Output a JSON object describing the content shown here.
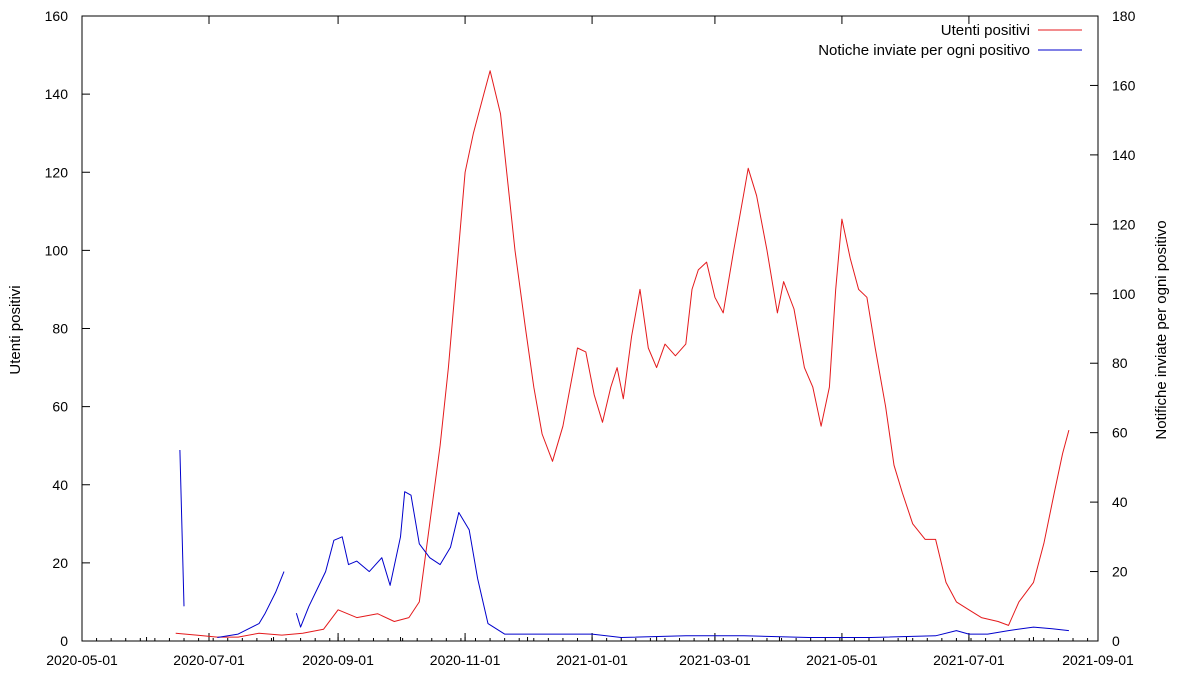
{
  "chart_data": {
    "type": "line",
    "title": "",
    "xlabel": "",
    "ylabel": "Utenti positivi",
    "y2label": "Notifiche inviate per ogni positivo",
    "xlim": [
      "2020-05-01",
      "2021-09-01"
    ],
    "ylim": [
      0,
      160
    ],
    "y2lim": [
      0,
      180
    ],
    "x_ticks": [
      "2020-05-01",
      "2020-07-01",
      "2020-09-01",
      "2020-11-01",
      "2021-01-01",
      "2021-03-01",
      "2021-05-01",
      "2021-07-01",
      "2021-09-01"
    ],
    "y_ticks": [
      "0",
      "20",
      "40",
      "60",
      "80",
      "100",
      "120",
      "140",
      "160"
    ],
    "y2_ticks": [
      "0",
      "20",
      "40",
      "60",
      "80",
      "100",
      "120",
      "140",
      "160",
      "180"
    ],
    "grid": false,
    "legend_position": "top-right",
    "series": [
      {
        "name": "Utenti positivi",
        "axis": "left",
        "color": "#e41a1c",
        "points": [
          [
            "2020-06-15",
            2
          ],
          [
            "2020-06-25",
            1.5
          ],
          [
            "2020-07-05",
            1
          ],
          [
            "2020-07-15",
            1
          ],
          [
            "2020-07-25",
            2
          ],
          [
            "2020-08-05",
            1.5
          ],
          [
            "2020-08-15",
            2
          ],
          [
            "2020-08-25",
            3
          ],
          [
            "2020-09-01",
            8
          ],
          [
            "2020-09-10",
            6
          ],
          [
            "2020-09-20",
            7
          ],
          [
            "2020-09-28",
            5
          ],
          [
            "2020-10-05",
            6
          ],
          [
            "2020-10-10",
            10
          ],
          [
            "2020-10-15",
            30
          ],
          [
            "2020-10-20",
            50
          ],
          [
            "2020-10-24",
            70
          ],
          [
            "2020-10-28",
            95
          ],
          [
            "2020-11-01",
            120
          ],
          [
            "2020-11-05",
            130
          ],
          [
            "2020-11-10",
            140
          ],
          [
            "2020-11-13",
            146
          ],
          [
            "2020-11-18",
            135
          ],
          [
            "2020-11-25",
            100
          ],
          [
            "2020-11-30",
            80
          ],
          [
            "2020-12-04",
            65
          ],
          [
            "2020-12-08",
            53
          ],
          [
            "2020-12-13",
            46
          ],
          [
            "2020-12-18",
            55
          ],
          [
            "2020-12-25",
            75
          ],
          [
            "2020-12-29",
            74
          ],
          [
            "2021-01-02",
            63
          ],
          [
            "2021-01-06",
            56
          ],
          [
            "2021-01-10",
            65
          ],
          [
            "2021-01-13",
            70
          ],
          [
            "2021-01-16",
            62
          ],
          [
            "2021-01-20",
            78
          ],
          [
            "2021-01-24",
            90
          ],
          [
            "2021-01-28",
            75
          ],
          [
            "2021-02-01",
            70
          ],
          [
            "2021-02-05",
            76
          ],
          [
            "2021-02-10",
            73
          ],
          [
            "2021-02-15",
            76
          ],
          [
            "2021-02-18",
            90
          ],
          [
            "2021-02-21",
            95
          ],
          [
            "2021-02-25",
            97
          ],
          [
            "2021-03-01",
            88
          ],
          [
            "2021-03-05",
            84
          ],
          [
            "2021-03-10",
            100
          ],
          [
            "2021-03-15",
            115
          ],
          [
            "2021-03-17",
            121
          ],
          [
            "2021-03-21",
            114
          ],
          [
            "2021-03-26",
            100
          ],
          [
            "2021-03-31",
            84
          ],
          [
            "2021-04-03",
            92
          ],
          [
            "2021-04-08",
            85
          ],
          [
            "2021-04-13",
            70
          ],
          [
            "2021-04-17",
            65
          ],
          [
            "2021-04-21",
            55
          ],
          [
            "2021-04-25",
            65
          ],
          [
            "2021-04-28",
            90
          ],
          [
            "2021-05-01",
            108
          ],
          [
            "2021-05-05",
            98
          ],
          [
            "2021-05-09",
            90
          ],
          [
            "2021-05-13",
            88
          ],
          [
            "2021-05-17",
            75
          ],
          [
            "2021-05-22",
            60
          ],
          [
            "2021-05-26",
            45
          ],
          [
            "2021-05-30",
            38
          ],
          [
            "2021-06-04",
            30
          ],
          [
            "2021-06-10",
            26
          ],
          [
            "2021-06-15",
            26
          ],
          [
            "2021-06-20",
            15
          ],
          [
            "2021-06-25",
            10
          ],
          [
            "2021-07-01",
            8
          ],
          [
            "2021-07-07",
            6
          ],
          [
            "2021-07-15",
            5
          ],
          [
            "2021-07-20",
            4
          ],
          [
            "2021-07-25",
            10
          ],
          [
            "2021-08-01",
            15
          ],
          [
            "2021-08-06",
            25
          ],
          [
            "2021-08-11",
            38
          ],
          [
            "2021-08-15",
            48
          ],
          [
            "2021-08-18",
            54
          ]
        ]
      },
      {
        "name": "Notiche inviate per ogni positivo",
        "axis": "right",
        "color": "#0000cc",
        "points": [
          [
            "2020-06-17",
            55
          ],
          [
            "2020-06-19",
            10
          ],
          null,
          [
            "2020-07-05",
            1
          ],
          [
            "2020-07-15",
            2
          ],
          [
            "2020-07-25",
            5
          ],
          [
            "2020-07-28",
            8
          ],
          [
            "2020-08-02",
            14
          ],
          [
            "2020-08-06",
            20
          ],
          null,
          [
            "2020-08-12",
            8
          ],
          [
            "2020-08-14",
            4
          ],
          [
            "2020-08-18",
            10
          ],
          [
            "2020-08-22",
            15
          ],
          [
            "2020-08-26",
            20
          ],
          [
            "2020-08-30",
            29
          ],
          [
            "2020-09-03",
            30
          ],
          [
            "2020-09-06",
            22
          ],
          [
            "2020-09-10",
            23
          ],
          [
            "2020-09-16",
            20
          ],
          [
            "2020-09-22",
            24
          ],
          [
            "2020-09-26",
            16
          ],
          [
            "2020-10-01",
            30
          ],
          [
            "2020-10-03",
            43
          ],
          [
            "2020-10-06",
            42
          ],
          [
            "2020-10-10",
            28
          ],
          [
            "2020-10-15",
            24
          ],
          [
            "2020-10-20",
            22
          ],
          [
            "2020-10-25",
            27
          ],
          [
            "2020-10-29",
            37
          ],
          [
            "2020-11-03",
            32
          ],
          [
            "2020-11-07",
            18
          ],
          [
            "2020-11-12",
            5
          ],
          [
            "2020-11-20",
            2
          ],
          [
            "2020-12-15",
            2
          ],
          [
            "2021-01-01",
            2
          ],
          [
            "2021-01-15",
            1
          ],
          [
            "2021-02-15",
            1.5
          ],
          [
            "2021-03-15",
            1.5
          ],
          [
            "2021-04-15",
            1
          ],
          [
            "2021-05-15",
            1
          ],
          [
            "2021-06-15",
            1.5
          ],
          [
            "2021-06-25",
            3
          ],
          [
            "2021-07-01",
            2
          ],
          [
            "2021-07-10",
            2
          ],
          [
            "2021-07-20",
            3
          ],
          [
            "2021-08-01",
            4
          ],
          [
            "2021-08-10",
            3.5
          ],
          [
            "2021-08-18",
            3
          ]
        ]
      }
    ]
  }
}
